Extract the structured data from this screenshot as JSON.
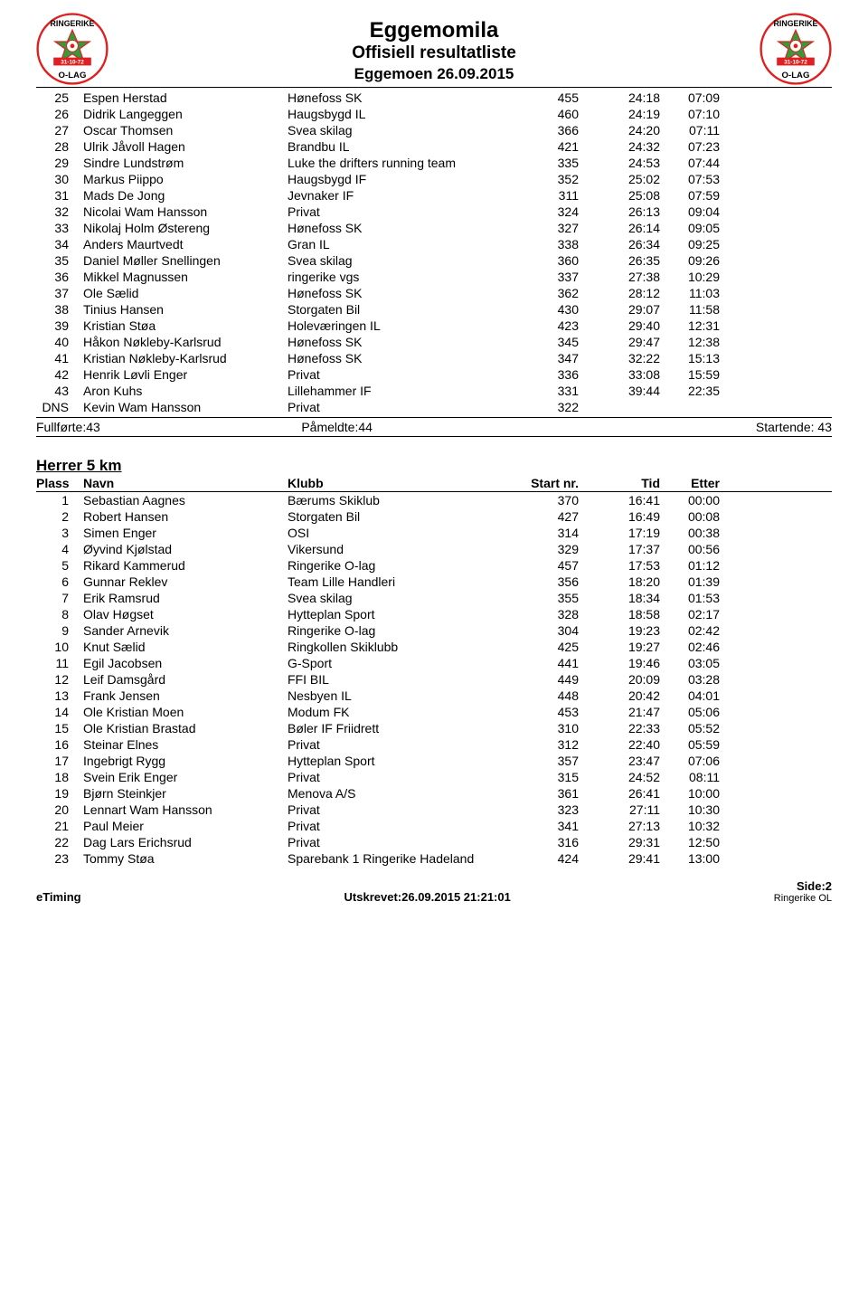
{
  "header": {
    "title": "Eggemomila",
    "subtitle": "Offisiell resultatliste",
    "date": "Eggemoen 26.09.2015"
  },
  "logo": {
    "top_text": "RINGERIKE",
    "mid_text": "31-10-72",
    "bottom_text": "O-LAG",
    "outer_color": "#e02020",
    "star_fill": "#2e9e3a",
    "star_center": "#ffffff",
    "banner_color": "#e02020",
    "banner_text_color": "#ffffff"
  },
  "table1": {
    "rows": [
      {
        "pl": "25",
        "name": "Espen Herstad",
        "club": "Hønefoss SK",
        "nr": "455",
        "tid": "24:18",
        "etter": "07:09"
      },
      {
        "pl": "26",
        "name": "Didrik Langeggen",
        "club": "Haugsbygd IL",
        "nr": "460",
        "tid": "24:19",
        "etter": "07:10"
      },
      {
        "pl": "27",
        "name": "Oscar Thomsen",
        "club": "Svea skilag",
        "nr": "366",
        "tid": "24:20",
        "etter": "07:11"
      },
      {
        "pl": "28",
        "name": "Ulrik Jåvoll Hagen",
        "club": "Brandbu IL",
        "nr": "421",
        "tid": "24:32",
        "etter": "07:23"
      },
      {
        "pl": "29",
        "name": "Sindre Lundstrøm",
        "club": "Luke the drifters running team",
        "nr": "335",
        "tid": "24:53",
        "etter": "07:44"
      },
      {
        "pl": "30",
        "name": "Markus Piippo",
        "club": "Haugsbygd IF",
        "nr": "352",
        "tid": "25:02",
        "etter": "07:53"
      },
      {
        "pl": "31",
        "name": "Mads De Jong",
        "club": "Jevnaker IF",
        "nr": "311",
        "tid": "25:08",
        "etter": "07:59"
      },
      {
        "pl": "32",
        "name": "Nicolai Wam Hansson",
        "club": "Privat",
        "nr": "324",
        "tid": "26:13",
        "etter": "09:04"
      },
      {
        "pl": "33",
        "name": "Nikolaj Holm Østereng",
        "club": "Hønefoss SK",
        "nr": "327",
        "tid": "26:14",
        "etter": "09:05"
      },
      {
        "pl": "34",
        "name": "Anders Maurtvedt",
        "club": "Gran IL",
        "nr": "338",
        "tid": "26:34",
        "etter": "09:25"
      },
      {
        "pl": "35",
        "name": "Daniel Møller Snellingen",
        "club": "Svea skilag",
        "nr": "360",
        "tid": "26:35",
        "etter": "09:26"
      },
      {
        "pl": "36",
        "name": "Mikkel Magnussen",
        "club": "ringerike vgs",
        "nr": "337",
        "tid": "27:38",
        "etter": "10:29"
      },
      {
        "pl": "37",
        "name": "Ole Sælid",
        "club": "Hønefoss SK",
        "nr": "362",
        "tid": "28:12",
        "etter": "11:03"
      },
      {
        "pl": "38",
        "name": "Tinius Hansen",
        "club": "Storgaten Bil",
        "nr": "430",
        "tid": "29:07",
        "etter": "11:58"
      },
      {
        "pl": "39",
        "name": "Kristian Støa",
        "club": "Holeværingen IL",
        "nr": "423",
        "tid": "29:40",
        "etter": "12:31"
      },
      {
        "pl": "40",
        "name": "Håkon Nøkleby-Karlsrud",
        "club": "Hønefoss SK",
        "nr": "345",
        "tid": "29:47",
        "etter": "12:38"
      },
      {
        "pl": "41",
        "name": "Kristian Nøkleby-Karlsrud",
        "club": "Hønefoss SK",
        "nr": "347",
        "tid": "32:22",
        "etter": "15:13"
      },
      {
        "pl": "42",
        "name": "Henrik Løvli Enger",
        "club": "Privat",
        "nr": "336",
        "tid": "33:08",
        "etter": "15:59"
      },
      {
        "pl": "43",
        "name": "Aron Kuhs",
        "club": "Lillehammer IF",
        "nr": "331",
        "tid": "39:44",
        "etter": "22:35"
      },
      {
        "pl": "DNS",
        "name": "Kevin Wam Hansson",
        "club": "Privat",
        "nr": "322",
        "tid": "",
        "etter": ""
      }
    ],
    "summary": {
      "fullforte": "Fullførte:43",
      "pameldte": "Påmeldte:44",
      "startende": "Startende: 43"
    }
  },
  "section2": {
    "title": "Herrer 5 km",
    "headers": {
      "plass": "Plass",
      "navn": "Navn",
      "klubb": "Klubb",
      "startnr": "Start nr.",
      "tid": "Tid",
      "etter": "Etter"
    },
    "rows": [
      {
        "pl": "1",
        "name": "Sebastian Aagnes",
        "club": "Bærums Skiklub",
        "nr": "370",
        "tid": "16:41",
        "etter": "00:00"
      },
      {
        "pl": "2",
        "name": "Robert Hansen",
        "club": "Storgaten Bil",
        "nr": "427",
        "tid": "16:49",
        "etter": "00:08"
      },
      {
        "pl": "3",
        "name": "Simen Enger",
        "club": "OSI",
        "nr": "314",
        "tid": "17:19",
        "etter": "00:38"
      },
      {
        "pl": "4",
        "name": "Øyvind Kjølstad",
        "club": "Vikersund",
        "nr": "329",
        "tid": "17:37",
        "etter": "00:56"
      },
      {
        "pl": "5",
        "name": "Rikard Kammerud",
        "club": "Ringerike O-lag",
        "nr": "457",
        "tid": "17:53",
        "etter": "01:12"
      },
      {
        "pl": "6",
        "name": "Gunnar Reklev",
        "club": "Team Lille Handleri",
        "nr": "356",
        "tid": "18:20",
        "etter": "01:39"
      },
      {
        "pl": "7",
        "name": "Erik Ramsrud",
        "club": "Svea skilag",
        "nr": "355",
        "tid": "18:34",
        "etter": "01:53"
      },
      {
        "pl": "8",
        "name": "Olav Høgset",
        "club": "Hytteplan Sport",
        "nr": "328",
        "tid": "18:58",
        "etter": "02:17"
      },
      {
        "pl": "9",
        "name": "Sander Arnevik",
        "club": "Ringerike O-lag",
        "nr": "304",
        "tid": "19:23",
        "etter": "02:42"
      },
      {
        "pl": "10",
        "name": "Knut Sælid",
        "club": "Ringkollen Skiklubb",
        "nr": "425",
        "tid": "19:27",
        "etter": "02:46"
      },
      {
        "pl": "11",
        "name": "Egil Jacobsen",
        "club": "G-Sport",
        "nr": "441",
        "tid": "19:46",
        "etter": "03:05"
      },
      {
        "pl": "12",
        "name": "Leif Damsgård",
        "club": "FFI BIL",
        "nr": "449",
        "tid": "20:09",
        "etter": "03:28"
      },
      {
        "pl": "13",
        "name": "Frank Jensen",
        "club": "Nesbyen IL",
        "nr": "448",
        "tid": "20:42",
        "etter": "04:01"
      },
      {
        "pl": "14",
        "name": "Ole Kristian Moen",
        "club": "Modum FK",
        "nr": "453",
        "tid": "21:47",
        "etter": "05:06"
      },
      {
        "pl": "15",
        "name": "Ole Kristian Brastad",
        "club": "Bøler IF Friidrett",
        "nr": "310",
        "tid": "22:33",
        "etter": "05:52"
      },
      {
        "pl": "16",
        "name": "Steinar Elnes",
        "club": "Privat",
        "nr": "312",
        "tid": "22:40",
        "etter": "05:59"
      },
      {
        "pl": "17",
        "name": "Ingebrigt Rygg",
        "club": "Hytteplan Sport",
        "nr": "357",
        "tid": "23:47",
        "etter": "07:06"
      },
      {
        "pl": "18",
        "name": "Svein Erik Enger",
        "club": "Privat",
        "nr": "315",
        "tid": "24:52",
        "etter": "08:11"
      },
      {
        "pl": "19",
        "name": "Bjørn Steinkjer",
        "club": "Menova A/S",
        "nr": "361",
        "tid": "26:41",
        "etter": "10:00"
      },
      {
        "pl": "20",
        "name": "Lennart Wam Hansson",
        "club": "Privat",
        "nr": "323",
        "tid": "27:11",
        "etter": "10:30"
      },
      {
        "pl": "21",
        "name": "Paul Meier",
        "club": "Privat",
        "nr": "341",
        "tid": "27:13",
        "etter": "10:32"
      },
      {
        "pl": "22",
        "name": "Dag Lars Erichsrud",
        "club": "Privat",
        "nr": "316",
        "tid": "29:31",
        "etter": "12:50"
      },
      {
        "pl": "23",
        "name": "Tommy Støa",
        "club": "Sparebank 1 Ringerike Hadeland",
        "nr": "424",
        "tid": "29:41",
        "etter": "13:00"
      }
    ]
  },
  "footer": {
    "left": "eTiming",
    "center": "Utskrevet:26.09.2015 21:21:01",
    "right1": "Side:2",
    "right2": "Ringerike OL"
  }
}
